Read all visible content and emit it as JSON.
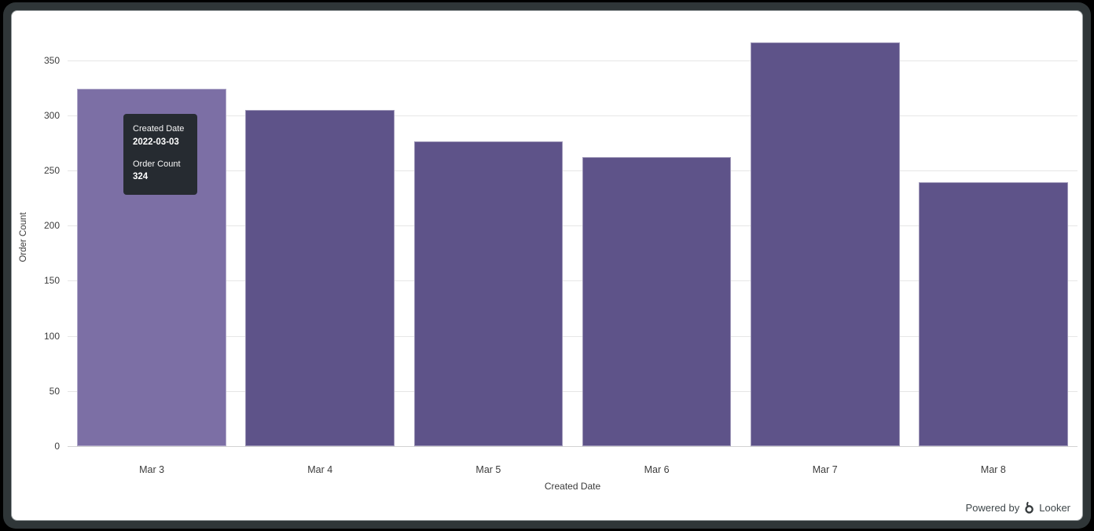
{
  "chart_data": {
    "type": "bar",
    "title": "",
    "xlabel": "Created Date",
    "ylabel": "Order Count",
    "categories": [
      "Mar 3",
      "Mar 4",
      "Mar 5",
      "Mar 6",
      "Mar 7",
      "Mar 8"
    ],
    "values": [
      324,
      305,
      276,
      262,
      366,
      239
    ],
    "ylim": [
      0,
      376
    ],
    "yticks": [
      0,
      50,
      100,
      150,
      200,
      250,
      300,
      350
    ],
    "grid": true,
    "legend_position": "none",
    "bar_color": "#5e5389",
    "bar_hover_color": "#7c6fa5",
    "hovered_index": 0
  },
  "tooltip": {
    "field1_label": "Created Date",
    "field1_value": "2022-03-03",
    "field2_label": "Order Count",
    "field2_value": "324",
    "bg_color": "#262b31"
  },
  "footer": {
    "powered_by_label": "Powered by",
    "brand_name": "Looker"
  }
}
